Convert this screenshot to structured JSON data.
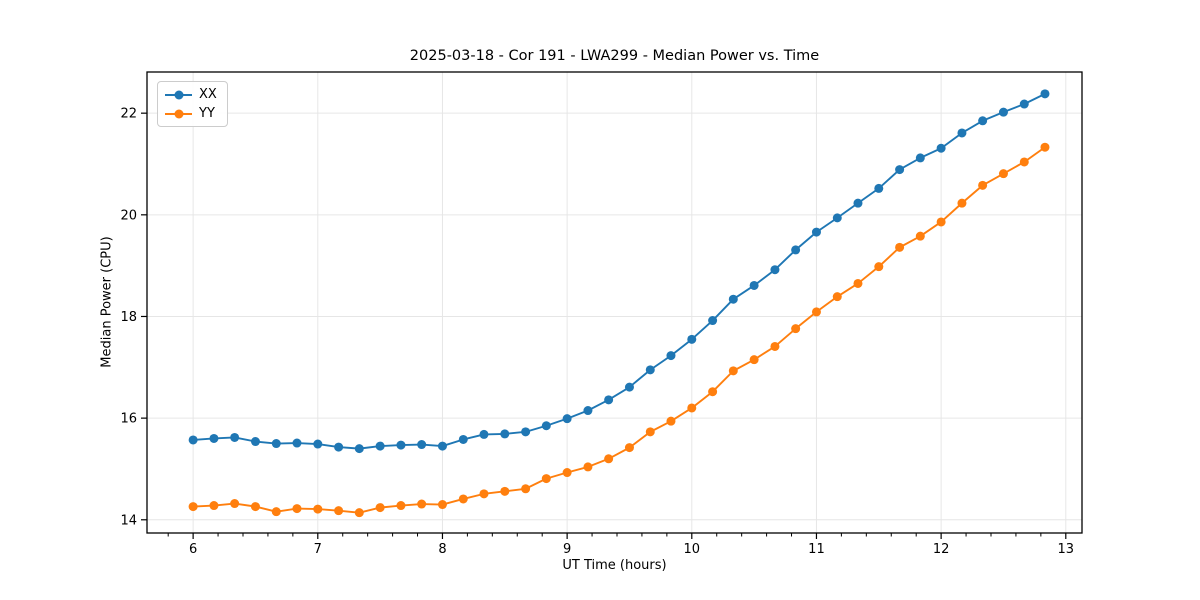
{
  "chart_data": {
    "type": "line",
    "title": "2025-03-18 - Cor 191 - LWA299 - Median Power vs. Time",
    "xlabel": "UT Time (hours)",
    "ylabel": "Median Power (CPU)",
    "xlim": [
      5.63,
      13.13
    ],
    "ylim": [
      13.74,
      22.81
    ],
    "x_major_ticks": [
      6,
      7,
      8,
      9,
      10,
      11,
      12,
      13
    ],
    "y_major_ticks": [
      14,
      16,
      18,
      20,
      22
    ],
    "x_minor_step": 0.2,
    "grid": "major",
    "grid_color": "#e6e6e6",
    "axis_color": "#000000",
    "legend_position": "upper-left",
    "x": [
      6.0,
      6.167,
      6.333,
      6.5,
      6.667,
      6.833,
      7.0,
      7.167,
      7.333,
      7.5,
      7.667,
      7.833,
      8.0,
      8.167,
      8.333,
      8.5,
      8.667,
      8.833,
      9.0,
      9.167,
      9.333,
      9.5,
      9.667,
      9.833,
      10.0,
      10.167,
      10.333,
      10.5,
      10.667,
      10.833,
      11.0,
      11.167,
      11.333,
      11.5,
      11.667,
      11.833,
      12.0,
      12.167,
      12.333,
      12.5,
      12.667,
      12.833
    ],
    "series": [
      {
        "name": "XX",
        "color": "#1f77b4",
        "values": [
          15.57,
          15.6,
          15.62,
          15.54,
          15.5,
          15.51,
          15.49,
          15.43,
          15.4,
          15.45,
          15.47,
          15.48,
          15.45,
          15.58,
          15.68,
          15.69,
          15.73,
          15.85,
          15.99,
          16.15,
          16.36,
          16.61,
          16.95,
          17.23,
          17.55,
          17.92,
          18.34,
          18.61,
          18.92,
          19.31,
          19.66,
          19.94,
          20.23,
          20.52,
          20.89,
          21.12,
          21.31,
          21.61,
          21.85,
          22.02,
          22.18,
          22.38
        ]
      },
      {
        "name": "YY",
        "color": "#ff7f0e",
        "values": [
          14.26,
          14.28,
          14.32,
          14.26,
          14.16,
          14.22,
          14.21,
          14.18,
          14.14,
          14.24,
          14.28,
          14.31,
          14.3,
          14.41,
          14.51,
          14.56,
          14.61,
          14.81,
          14.93,
          15.04,
          15.2,
          15.42,
          15.73,
          15.94,
          16.2,
          16.52,
          16.93,
          17.15,
          17.41,
          17.76,
          18.09,
          18.39,
          18.65,
          18.98,
          19.36,
          19.58,
          19.86,
          20.23,
          20.58,
          20.81,
          21.04,
          21.33
        ]
      }
    ]
  }
}
